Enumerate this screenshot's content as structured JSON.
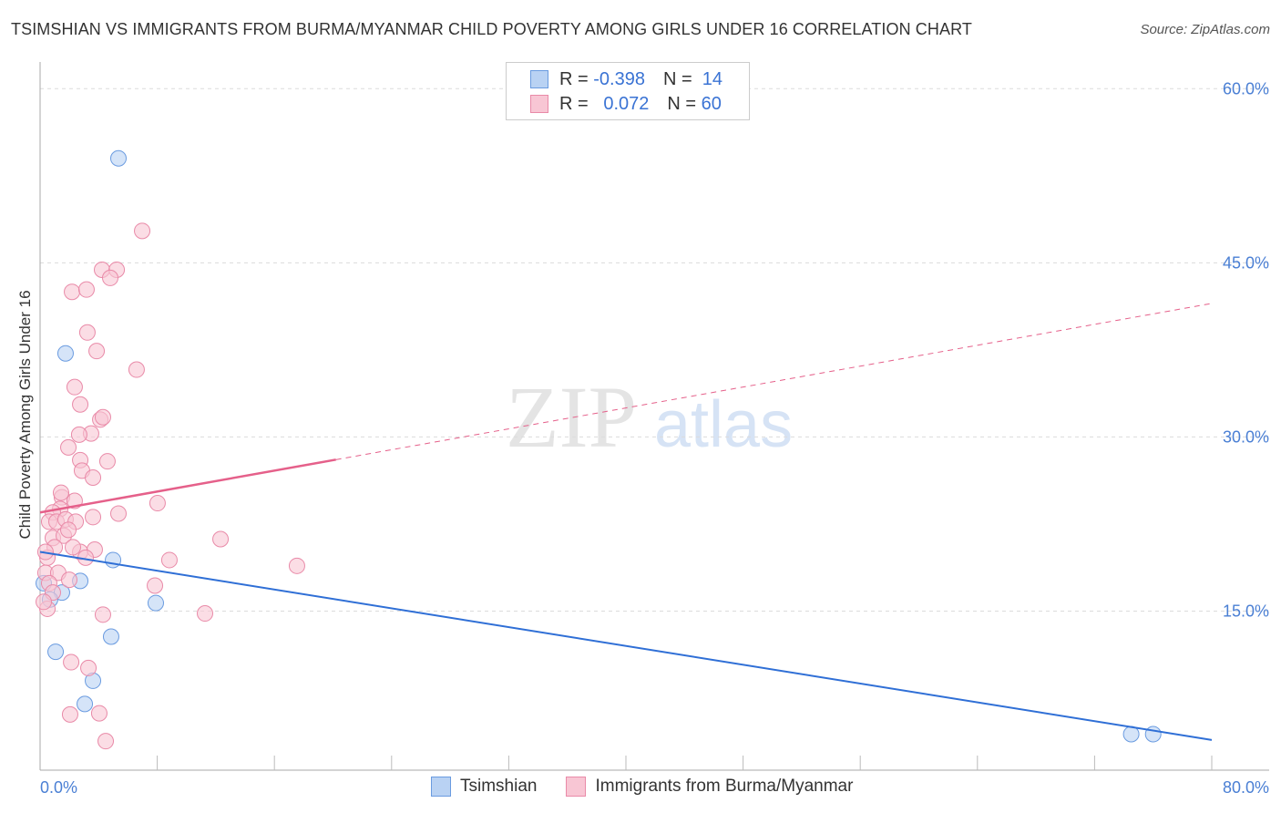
{
  "title": "TSIMSHIAN VS IMMIGRANTS FROM BURMA/MYANMAR CHILD POVERTY AMONG GIRLS UNDER 16 CORRELATION CHART",
  "source": "Source: ZipAtlas.com",
  "watermark": "ZIPatlas",
  "legend": {
    "rows": [
      {
        "r_label": "R =",
        "r_value": "-0.398",
        "n_label": "N =",
        "n_value": "14"
      },
      {
        "r_label": "R =",
        "r_value": "0.072",
        "n_label": "N =",
        "n_value": "60"
      }
    ]
  },
  "chart_data": {
    "type": "scatter",
    "title": "TSIMSHIAN VS IMMIGRANTS FROM BURMA/MYANMAR CHILD POVERTY AMONG GIRLS UNDER 16 CORRELATION CHART",
    "xlabel": "",
    "ylabel": "Child Poverty Among Girls Under 16",
    "xlim": [
      0,
      80
    ],
    "ylim": [
      1.3,
      62.3
    ],
    "x_tick_labels": [
      "0.0%",
      "80.0%"
    ],
    "y_ticks": [
      15,
      30,
      45,
      60
    ],
    "y_tick_labels": [
      "15.0%",
      "30.0%",
      "45.0%",
      "60.0%"
    ],
    "grid": true,
    "legend_placement": "bottom",
    "series": [
      {
        "name": "Tsimshian",
        "color": "#6a9be0",
        "fill": "#b9d2f3",
        "line_color": "#2f6fd6",
        "trend": {
          "x": [
            0,
            80
          ],
          "y": [
            20.1,
            3.9
          ],
          "dashed_from": null
        },
        "points": [
          [
            5.35,
            54.0
          ],
          [
            1.74,
            37.2
          ],
          [
            4.98,
            19.4
          ],
          [
            2.74,
            17.6
          ],
          [
            1.49,
            16.6
          ],
          [
            0.68,
            16.0
          ],
          [
            0.25,
            17.4
          ],
          [
            7.9,
            15.7
          ],
          [
            4.85,
            12.8
          ],
          [
            1.06,
            11.5
          ],
          [
            3.61,
            9.0
          ],
          [
            3.05,
            7.0
          ],
          [
            74.5,
            4.4
          ],
          [
            76.0,
            4.4
          ]
        ]
      },
      {
        "name": "Immigrants from Burma/Myanmar",
        "color": "#e98aa8",
        "fill": "#f8c6d4",
        "line_color": "#e5608a",
        "trend": {
          "x": [
            0,
            80
          ],
          "y": [
            23.5,
            41.5
          ],
          "dashed_from": 20.2
        },
        "points": [
          [
            6.97,
            47.75
          ],
          [
            4.23,
            44.4
          ],
          [
            5.23,
            44.4
          ],
          [
            4.79,
            43.7
          ],
          [
            2.18,
            42.5
          ],
          [
            3.17,
            42.7
          ],
          [
            3.23,
            39.0
          ],
          [
            3.86,
            37.4
          ],
          [
            6.59,
            35.8
          ],
          [
            2.36,
            34.3
          ],
          [
            2.74,
            32.8
          ],
          [
            4.11,
            31.5
          ],
          [
            4.29,
            31.7
          ],
          [
            1.93,
            29.1
          ],
          [
            3.48,
            30.3
          ],
          [
            2.67,
            30.2
          ],
          [
            2.74,
            28.0
          ],
          [
            4.6,
            27.9
          ],
          [
            2.86,
            27.1
          ],
          [
            3.61,
            26.5
          ],
          [
            1.49,
            24.8
          ],
          [
            2.36,
            24.5
          ],
          [
            1.37,
            23.8
          ],
          [
            8.02,
            24.3
          ],
          [
            0.87,
            23.5
          ],
          [
            5.35,
            23.4
          ],
          [
            0.62,
            22.7
          ],
          [
            1.12,
            22.7
          ],
          [
            1.74,
            22.9
          ],
          [
            2.43,
            22.7
          ],
          [
            3.61,
            23.1
          ],
          [
            0.87,
            21.3
          ],
          [
            1.62,
            21.5
          ],
          [
            1.93,
            22.0
          ],
          [
            1.0,
            20.5
          ],
          [
            2.74,
            20.1
          ],
          [
            3.73,
            20.3
          ],
          [
            12.32,
            21.2
          ],
          [
            8.83,
            19.4
          ],
          [
            17.54,
            18.9
          ],
          [
            0.5,
            19.6
          ],
          [
            0.37,
            18.3
          ],
          [
            1.24,
            18.3
          ],
          [
            0.62,
            17.4
          ],
          [
            1.99,
            17.7
          ],
          [
            7.84,
            17.2
          ],
          [
            0.87,
            16.6
          ],
          [
            0.5,
            15.2
          ],
          [
            0.25,
            15.8
          ],
          [
            4.29,
            14.7
          ],
          [
            11.26,
            14.8
          ],
          [
            2.12,
            10.6
          ],
          [
            3.3,
            10.1
          ],
          [
            2.05,
            6.1
          ],
          [
            4.04,
            6.2
          ],
          [
            4.48,
            3.8
          ],
          [
            0.37,
            20.1
          ],
          [
            2.24,
            20.5
          ],
          [
            3.11,
            19.6
          ],
          [
            1.43,
            25.2
          ]
        ]
      }
    ]
  }
}
